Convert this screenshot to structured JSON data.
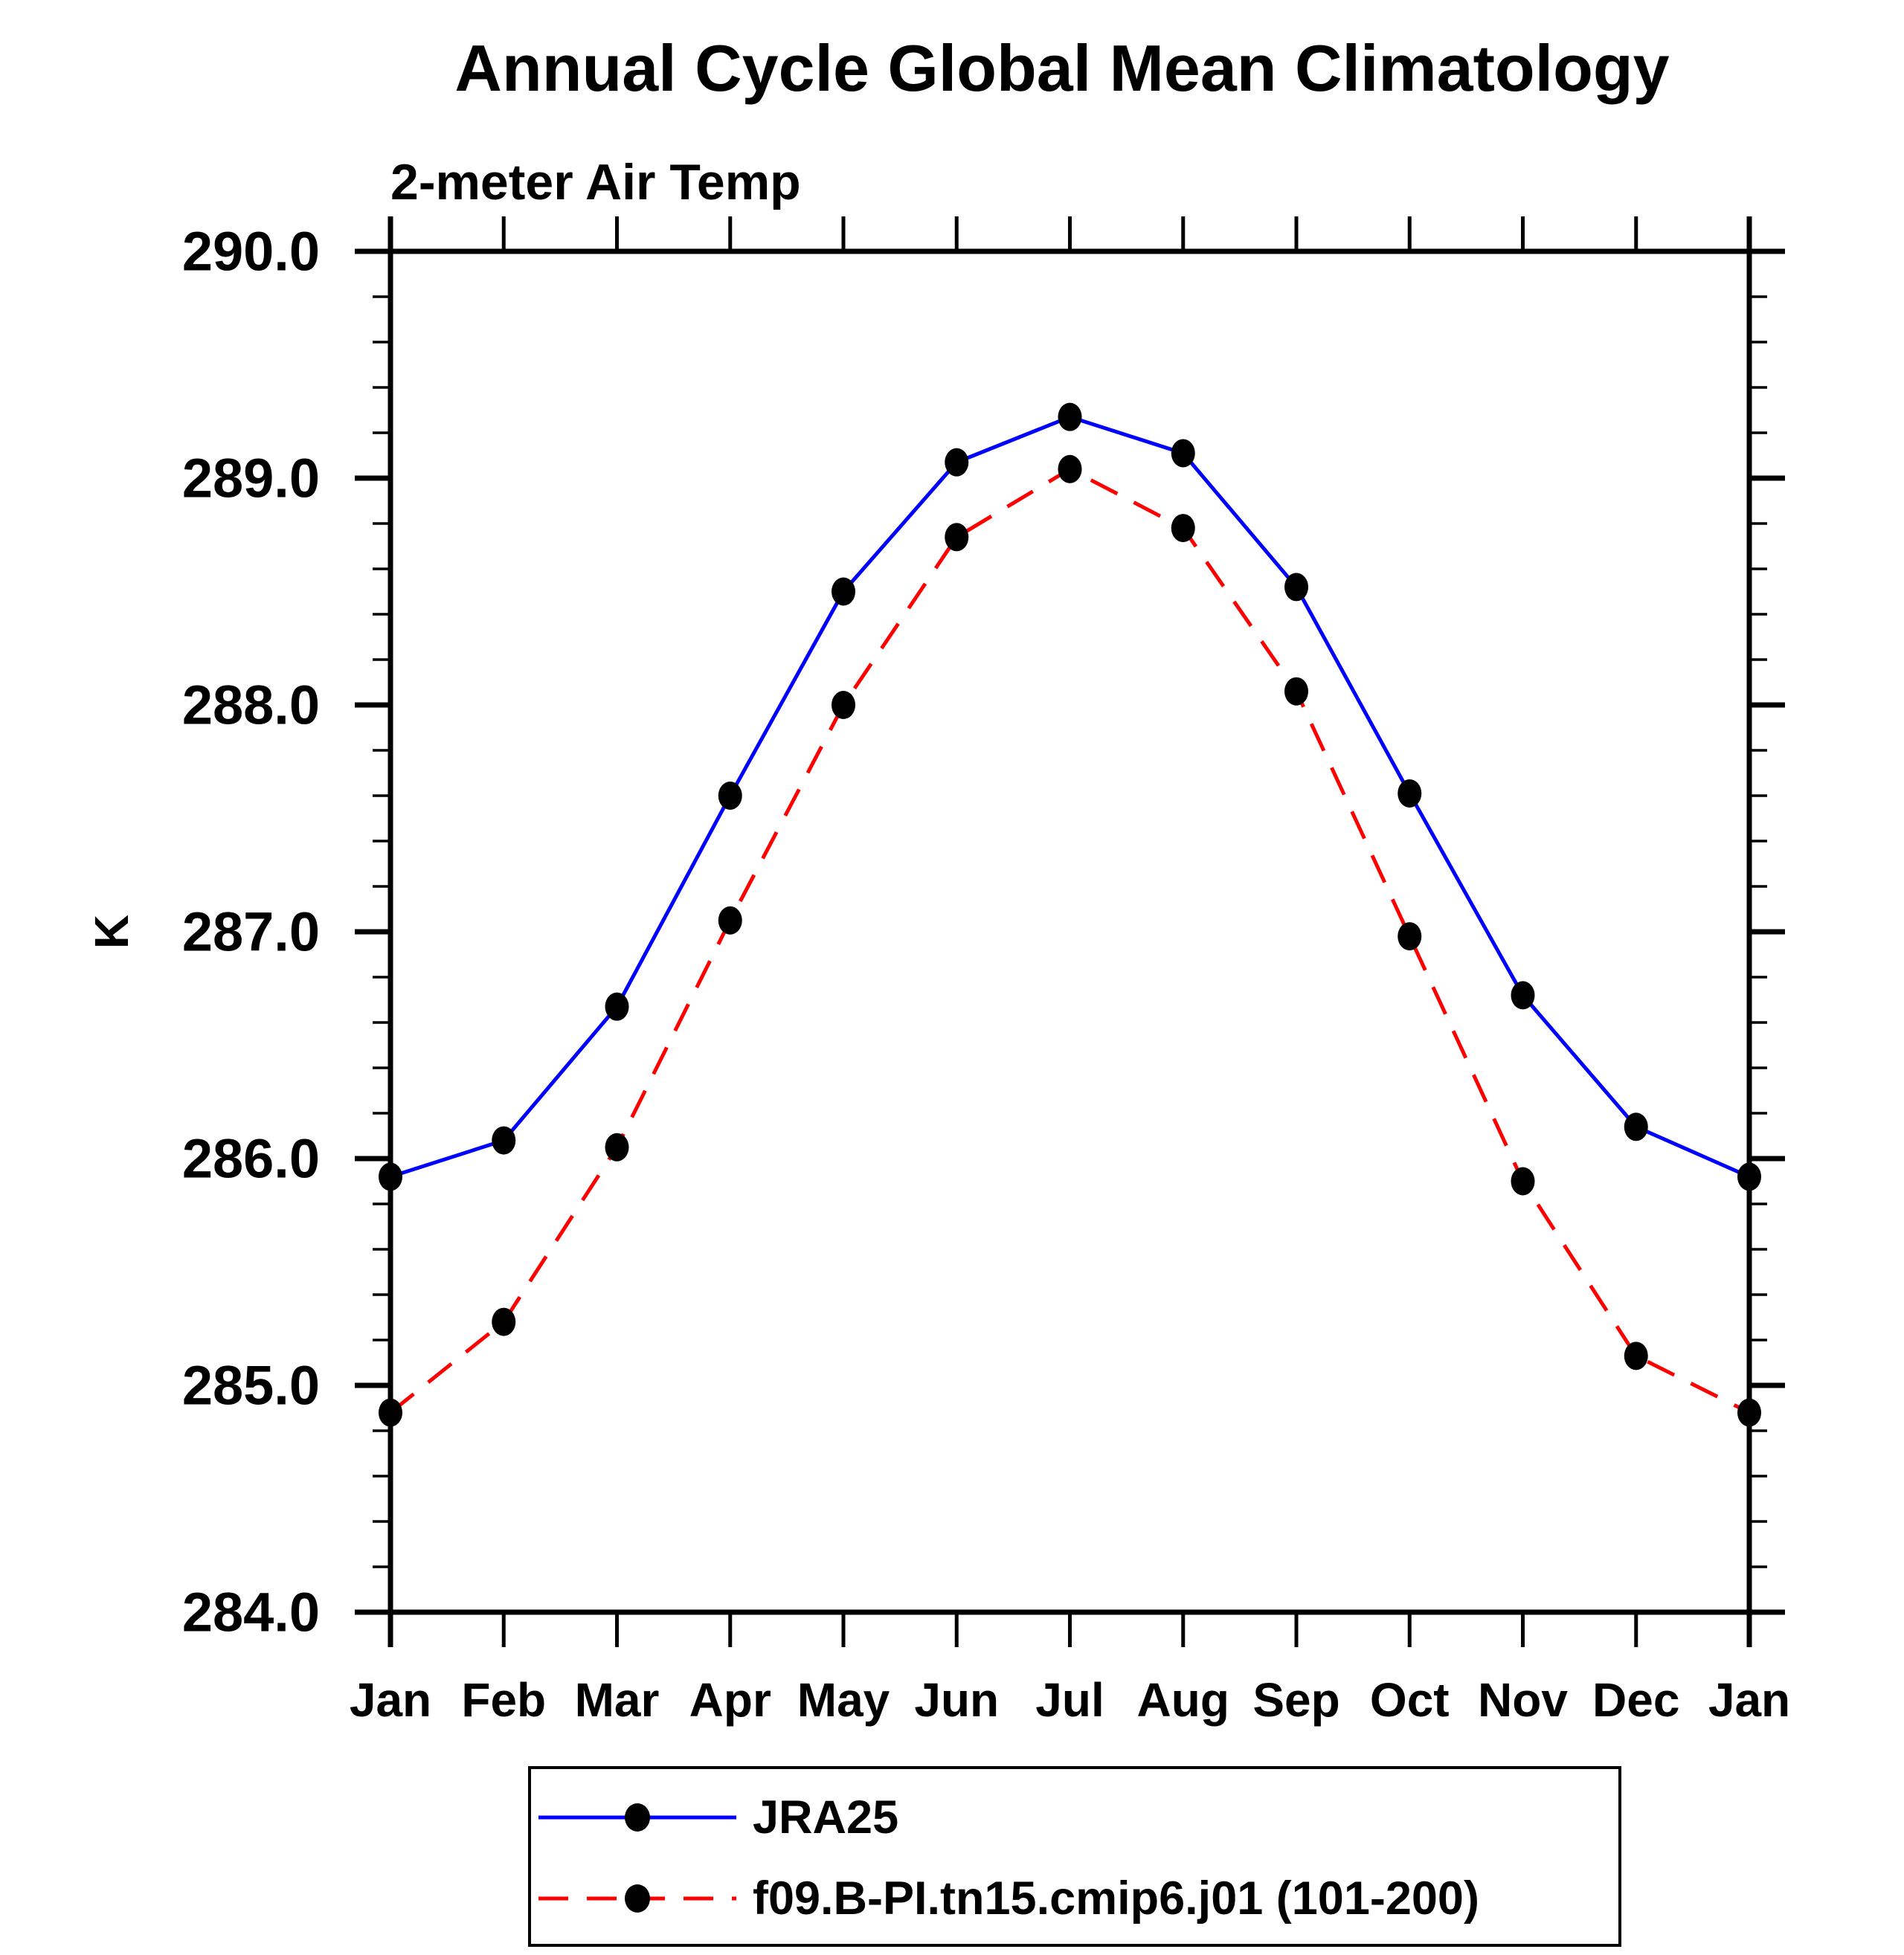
{
  "chart_data": {
    "type": "line",
    "title": "Annual Cycle Global Mean Climatology",
    "subtitle": "2-meter Air Temp",
    "ylabel": "K",
    "categories": [
      "Jan",
      "Feb",
      "Mar",
      "Apr",
      "May",
      "Jun",
      "Jul",
      "Aug",
      "Sep",
      "Oct",
      "Nov",
      "Dec",
      "Jan"
    ],
    "y_axis": {
      "min": 284.0,
      "max": 290.0,
      "major_step": 1.0,
      "minor_step": 0.2
    },
    "y_tick_labels": [
      "290.0",
      "289.0",
      "288.0",
      "287.0",
      "286.0",
      "285.0",
      "284.0"
    ],
    "grid": false,
    "legend_position": "bottom",
    "colors": {
      "series1": "#0000ff",
      "series2": "#ff0000",
      "marker": "#000000",
      "axis": "#000000"
    },
    "series": [
      {
        "name": "JRA25",
        "color": "#0000ff",
        "style": "solid",
        "marker": "filled-circle",
        "values": [
          285.92,
          286.08,
          286.67,
          287.6,
          288.5,
          289.07,
          289.27,
          289.11,
          288.52,
          287.61,
          286.72,
          286.14,
          285.92
        ]
      },
      {
        "name": "f09.B-PI.tn15.cmip6.j01 (101-200)",
        "color": "#ff0000",
        "style": "dashed",
        "marker": "filled-circle",
        "values": [
          284.88,
          285.28,
          286.05,
          287.05,
          288.0,
          288.74,
          289.04,
          288.78,
          288.06,
          286.98,
          285.9,
          285.13,
          284.88
        ]
      }
    ]
  }
}
